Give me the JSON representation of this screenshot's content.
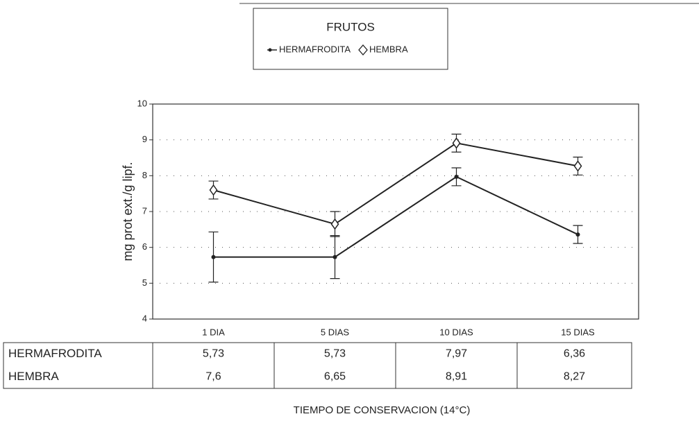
{
  "chart_data": {
    "type": "line",
    "legend_title": "FRUTOS",
    "ylabel": "mg prot ext./g lipf.",
    "xlabel": "TIEMPO DE CONSERVACION (14°C)",
    "categories": [
      "1 DIA",
      "5 DIAS",
      "10 DIAS",
      "15 DIAS"
    ],
    "series": [
      {
        "name": "HERMAFRODITA",
        "color": "#222222",
        "marker": "dot",
        "values": [
          5.73,
          5.73,
          7.97,
          6.36
        ],
        "value_labels": [
          "5,73",
          "5,73",
          "7,97",
          "6,36"
        ],
        "errors": [
          0.7,
          0.6,
          0.25,
          0.25
        ]
      },
      {
        "name": "HEMBRA",
        "color": "#222222",
        "marker": "diamond",
        "values": [
          7.6,
          6.65,
          8.91,
          8.27
        ],
        "value_labels": [
          "7,6",
          "6,65",
          "8,91",
          "8,27"
        ],
        "errors": [
          0.25,
          0.35,
          0.25,
          0.25
        ]
      }
    ],
    "ylim": [
      4,
      10
    ],
    "yticks": [
      4,
      5,
      6,
      7,
      8,
      9,
      10
    ],
    "grid": true,
    "legend": "top"
  }
}
